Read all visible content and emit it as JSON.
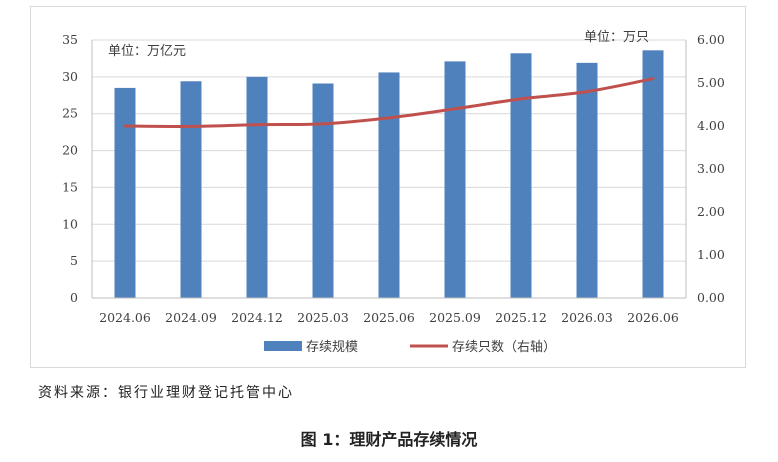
{
  "chart_data": {
    "type": "bar",
    "categories": [
      "2024.06",
      "2024.09",
      "2024.12",
      "2025.03",
      "2025.06",
      "2025.09",
      "2025.12",
      "2026.03",
      "2026.06"
    ],
    "series": [
      {
        "name": "存续规模",
        "type": "bar",
        "axis": "left",
        "color": "#4f81bd",
        "values": [
          28.5,
          29.4,
          30.0,
          29.1,
          30.6,
          32.1,
          33.2,
          31.9,
          33.6
        ]
      },
      {
        "name": "存续只数（右轴）",
        "type": "line",
        "axis": "right",
        "color": "#c0504d",
        "values": [
          4.0,
          3.99,
          4.03,
          4.05,
          4.19,
          4.4,
          4.63,
          4.8,
          5.1
        ]
      }
    ],
    "y_left": {
      "min": 0,
      "max": 35,
      "ticks": [
        "0",
        "5",
        "10",
        "15",
        "20",
        "25",
        "30",
        "35"
      ],
      "unit": "单位：万亿元"
    },
    "y_right": {
      "min": 0,
      "max": 6,
      "ticks": [
        "0.00",
        "1.00",
        "2.00",
        "3.00",
        "4.00",
        "5.00",
        "6.00"
      ],
      "unit": "单位：万只"
    },
    "grid": true,
    "legend": "bottom"
  },
  "source": "资料来源：银行业理财登记托管中心",
  "caption": "图 1：理财产品存续情况"
}
